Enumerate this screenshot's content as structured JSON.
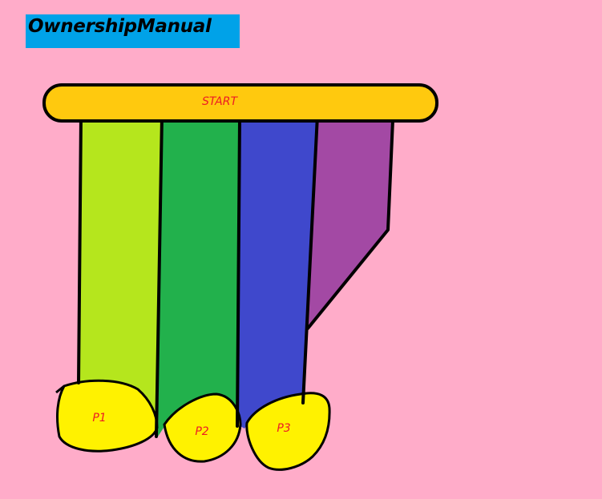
{
  "title": "OwnershipManual",
  "start_label": "START",
  "nodes": [
    {
      "id": "p1",
      "label": "P1"
    },
    {
      "id": "p2",
      "label": "P2"
    },
    {
      "id": "p3",
      "label": "P3"
    }
  ],
  "colors": {
    "background": "#ffacc9",
    "title_box": "#00a2e8",
    "start_bar": "#ffc90e",
    "band_1": "#b5e61d",
    "band_2": "#22b14c",
    "band_3": "#3f48cc",
    "band_4": "#a349a4",
    "node_fill": "#fff200",
    "label_text": "#ed1c24"
  }
}
